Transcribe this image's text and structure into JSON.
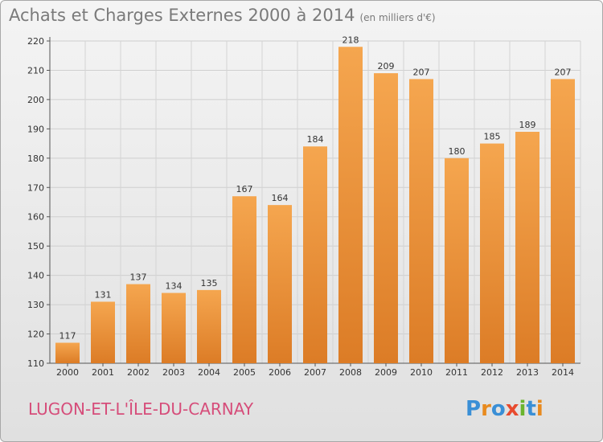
{
  "header": {
    "title": "Achats et Charges Externes 2000 à 2014",
    "unit": "(en milliers d'€)"
  },
  "footer": {
    "city": "LUGON-ET-L'ÎLE-DU-CARNAY",
    "brand": "Proxiti"
  },
  "colors": {
    "bar_top": "#f5a64f",
    "bar_bottom": "#dc7c26",
    "city": "#d64d7a",
    "title": "#7a7a7a"
  },
  "chart_data": {
    "type": "bar",
    "title": "Achats et Charges Externes 2000 à 2014",
    "subtitle": "(en milliers d'€)",
    "categories": [
      "2000",
      "2001",
      "2002",
      "2003",
      "2004",
      "2005",
      "2006",
      "2007",
      "2008",
      "2009",
      "2010",
      "2011",
      "2012",
      "2013",
      "2014"
    ],
    "values": [
      117,
      131,
      137,
      134,
      135,
      167,
      164,
      184,
      218,
      209,
      207,
      180,
      185,
      189,
      207
    ],
    "ylim": [
      110,
      220
    ],
    "yticks": [
      110,
      120,
      130,
      140,
      150,
      160,
      170,
      180,
      190,
      200,
      210,
      220
    ],
    "grid": true,
    "data_labels": true,
    "legend": "none"
  }
}
